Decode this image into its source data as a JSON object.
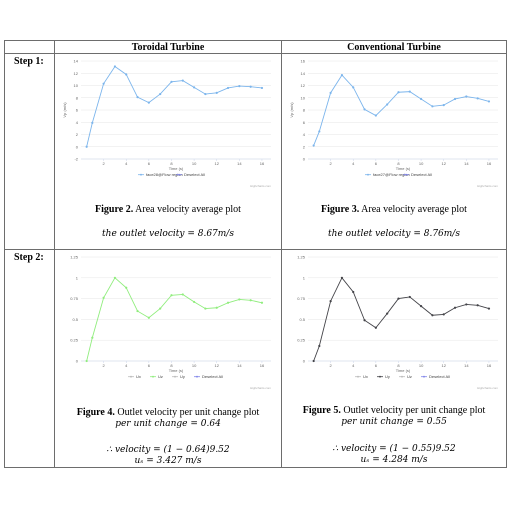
{
  "table": {
    "col1_header": "Toroidal Turbine",
    "col2_header": "Conventional Turbine",
    "step1_label": "Step 1:",
    "step2_label": "Step 2:"
  },
  "fig2": {
    "caption_bold": "Figure 2.",
    "caption_text": " Area velocity average plot",
    "formula": "the outlet velocity = 8.67m/s"
  },
  "fig3": {
    "caption_bold": "Figure 3.",
    "caption_text": " Area velocity average plot",
    "formula": "the outlet velocity = 8.76m/s"
  },
  "fig4": {
    "caption_bold": "Figure 4.",
    "caption_text": " Outlet velocity per unit change plot",
    "line1": "per unit change = 0.64",
    "line2": "∴ velocity = (1 − 0.64)9.52",
    "line3": "uₛ = 3.427 m/s"
  },
  "fig5": {
    "caption_bold": "Figure 5.",
    "caption_text": " Outlet velocity per unit change plot",
    "line1": "per unit change = 0.55",
    "line2": "∴ velocity = (1 − 0.55)9.52",
    "line3": "uₛ = 4.284 m/s"
  },
  "chart_data": [
    {
      "type": "line",
      "panel": "step1-toroidal",
      "color": "#7cb5ec",
      "x": [
        0.5,
        1,
        2,
        3,
        4,
        5,
        6,
        7,
        8,
        9,
        10,
        11,
        12,
        13,
        14,
        15,
        16
      ],
      "y": [
        0,
        3.9,
        10.3,
        13.1,
        11.8,
        8.1,
        7.2,
        8.6,
        10.6,
        10.8,
        9.7,
        8.6,
        8.8,
        9.6,
        9.9,
        9.8,
        9.6
      ],
      "xlabel": "Time (s)",
      "ylabel": "Vp (m/s)",
      "ylim": [
        -2,
        14
      ],
      "yticks": [
        -2,
        0,
        2,
        4,
        6,
        8,
        10,
        12,
        14
      ],
      "xticks": [
        2,
        4,
        6,
        8,
        10,
        12,
        14,
        16
      ],
      "legend": [
        "face28@Flow region",
        "Deselect All"
      ],
      "credit": "Highcharts.com"
    },
    {
      "type": "line",
      "panel": "step1-conventional",
      "color": "#7cb5ec",
      "x": [
        0.5,
        1,
        2,
        3,
        4,
        5,
        6,
        7,
        8,
        9,
        10,
        11,
        12,
        13,
        14,
        15,
        16
      ],
      "y": [
        2.2,
        4.5,
        10.8,
        13.7,
        11.7,
        8.1,
        7.1,
        8.9,
        10.9,
        11.0,
        9.8,
        8.6,
        8.8,
        9.8,
        10.2,
        9.9,
        9.4
      ],
      "xlabel": "Time (s)",
      "ylabel": "Vp (m/s)",
      "ylim": [
        0,
        16
      ],
      "yticks": [
        0,
        2,
        4,
        6,
        8,
        10,
        12,
        14,
        16
      ],
      "xticks": [
        2,
        4,
        6,
        8,
        10,
        12,
        14,
        16
      ],
      "legend": [
        "face27@Flow region",
        "Deselect All"
      ],
      "credit": "Highcharts.com"
    },
    {
      "type": "line",
      "panel": "step2-toroidal",
      "color": "#90ed7d",
      "x": [
        0.5,
        1,
        2,
        3,
        4,
        5,
        6,
        7,
        8,
        9,
        10,
        11,
        12,
        13,
        14,
        15,
        16
      ],
      "y": [
        0,
        0.28,
        0.76,
        1.0,
        0.88,
        0.6,
        0.52,
        0.63,
        0.79,
        0.8,
        0.71,
        0.63,
        0.64,
        0.7,
        0.74,
        0.73,
        0.7
      ],
      "xlabel": "Time (s)",
      "ylim": [
        0,
        1.25
      ],
      "yticks": [
        0,
        0.25,
        0.5,
        0.75,
        1,
        1.25
      ],
      "xticks": [
        2,
        4,
        6,
        8,
        10,
        12,
        14,
        16
      ],
      "legend": [
        "Ux",
        "Uz",
        "Uy",
        "Deselect All"
      ],
      "credit": "Highcharts.com"
    },
    {
      "type": "line",
      "panel": "step2-conventional",
      "color": "#434348",
      "x": [
        0.5,
        1,
        2,
        3,
        4,
        5,
        6,
        7,
        8,
        9,
        10,
        11,
        12,
        13,
        14,
        15,
        16
      ],
      "y": [
        0,
        0.18,
        0.72,
        1.0,
        0.83,
        0.49,
        0.4,
        0.57,
        0.75,
        0.77,
        0.66,
        0.55,
        0.56,
        0.64,
        0.68,
        0.67,
        0.63
      ],
      "xlabel": "Time (s)",
      "ylim": [
        0,
        1.25
      ],
      "yticks": [
        0,
        0.25,
        0.5,
        0.75,
        1,
        1.25
      ],
      "xticks": [
        2,
        4,
        6,
        8,
        10,
        12,
        14,
        16
      ],
      "legend": [
        "Ux",
        "Uy",
        "Uz",
        "Deselect All"
      ],
      "credit": "Highcharts.com"
    }
  ]
}
